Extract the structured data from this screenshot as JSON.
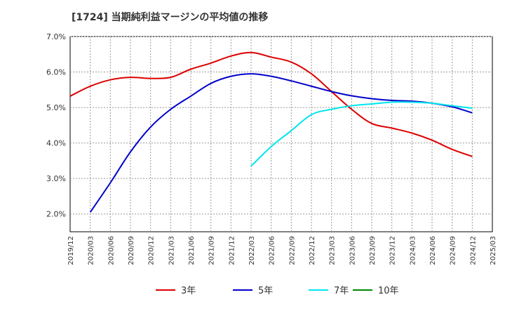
{
  "chart_data": {
    "type": "line",
    "title": "[1724]  当期純利益マージンの平均値の推移",
    "xlabel": "",
    "ylabel": "",
    "ylim": [
      1.5,
      7.0
    ],
    "y_ticks": [
      "2.0%",
      "3.0%",
      "4.0%",
      "5.0%",
      "6.0%",
      "7.0%"
    ],
    "y_tick_values": [
      2.0,
      3.0,
      4.0,
      5.0,
      6.0,
      7.0
    ],
    "x_ticks": [
      "2019/12",
      "2020/03",
      "2020/06",
      "2020/09",
      "2020/12",
      "2021/03",
      "2021/06",
      "2021/09",
      "2021/12",
      "2022/03",
      "2022/06",
      "2022/09",
      "2022/12",
      "2023/03",
      "2023/06",
      "2023/09",
      "2023/12",
      "2024/03",
      "2024/06",
      "2024/09",
      "2024/12",
      "2025/03"
    ],
    "grid": true,
    "legend_position": "bottom",
    "series": [
      {
        "name": "3年",
        "color": "#dd0000",
        "values": [
          5.32,
          5.6,
          5.78,
          5.85,
          5.82,
          5.85,
          6.08,
          6.25,
          6.45,
          6.55,
          6.42,
          6.28,
          5.95,
          5.45,
          4.95,
          4.55,
          4.42,
          4.28,
          4.08,
          3.82,
          3.62,
          null
        ]
      },
      {
        "name": "5年",
        "color": "#0000cc",
        "values": [
          null,
          2.05,
          2.88,
          3.75,
          4.45,
          4.95,
          5.32,
          5.68,
          5.88,
          5.95,
          5.88,
          5.75,
          5.6,
          5.45,
          5.33,
          5.25,
          5.2,
          5.18,
          5.12,
          5.02,
          4.85,
          null
        ]
      },
      {
        "name": "7年",
        "color": "#00e5ee",
        "values": [
          null,
          null,
          null,
          null,
          null,
          null,
          null,
          null,
          null,
          3.35,
          3.9,
          4.35,
          4.8,
          4.95,
          5.05,
          5.1,
          5.15,
          5.15,
          5.12,
          5.05,
          4.98,
          null
        ]
      },
      {
        "name": "10年",
        "color": "#008800",
        "values": []
      }
    ]
  }
}
